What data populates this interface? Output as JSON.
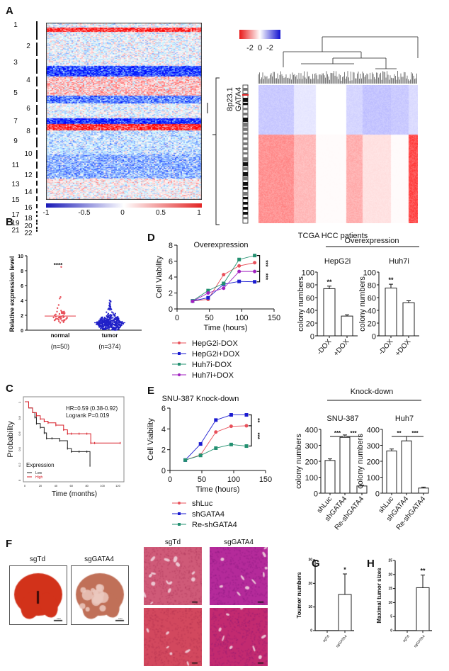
{
  "panel_labels": {
    "A": "A",
    "B": "B",
    "C": "C",
    "D": "D",
    "E": "E",
    "F": "F",
    "G": "G",
    "H": "H"
  },
  "group_titles": {
    "overexpression": "Overexpression",
    "knockdown": "Knock-down"
  },
  "colors": {
    "blue": "#1a1ab8",
    "red": "#e32626",
    "white": "#ffffff"
  },
  "panel_F": {
    "groups": [
      "sgTd",
      "sgGATA4"
    ],
    "scale_bar": "1cm"
  },
  "chart_data": [
    {
      "id": "A-genome-heatmap",
      "type": "heatmap",
      "rows_label": "chromosomes",
      "chromosomes": [
        "1",
        "2",
        "3",
        "4",
        "5",
        "6",
        "7",
        "8",
        "9",
        "10",
        "11",
        "12",
        "13",
        "14",
        "15",
        "16",
        "17",
        "18",
        "19",
        "20",
        "21",
        "22"
      ],
      "colorbar_ticks": [
        "-1",
        "-0.5",
        "0",
        "0.5",
        "1"
      ],
      "colorbar_range": [
        -1,
        1
      ]
    },
    {
      "id": "A-cluster-heatmap",
      "type": "heatmap",
      "colorbar_ticks": [
        "-2",
        "0",
        "-2"
      ],
      "locus": "8p23.1",
      "gene": "GATA4",
      "xlabel": "TCGA HCC patients"
    },
    {
      "id": "B",
      "type": "scatter",
      "ylabel": "Relative expression level",
      "ylim": [
        0,
        10
      ],
      "yticks": [
        0,
        2,
        4,
        6,
        8,
        10
      ],
      "categories": [
        "normal",
        "tumor"
      ],
      "n_labels": [
        "(n=50)",
        "(n=374)"
      ],
      "medians": [
        1.9,
        1.0
      ],
      "colors": [
        "#e8505a",
        "#2020c8"
      ],
      "significance": "****"
    },
    {
      "id": "C",
      "type": "line",
      "ylabel": "Probability",
      "xlabel": "Time (months)",
      "xticks": [
        0,
        20,
        40,
        60,
        80,
        100,
        120
      ],
      "yticks": [
        0,
        0.2,
        0.4,
        0.6,
        0.8,
        1.0
      ],
      "xlim": [
        0,
        125
      ],
      "ylim": [
        0,
        1
      ],
      "annotations": [
        "HR=0.59 (0.38-0.92)",
        "Logrank P=0.019"
      ],
      "legend_title": "Expression",
      "series": [
        {
          "name": "Low",
          "color": "#222222",
          "x": [
            0,
            5,
            10,
            13,
            15,
            20,
            25,
            28,
            35,
            45,
            55,
            60,
            70,
            80,
            84
          ],
          "y": [
            1,
            0.92,
            0.86,
            0.8,
            0.72,
            0.67,
            0.6,
            0.53,
            0.53,
            0.5,
            0.4,
            0.36,
            0.36,
            0.36,
            0.18
          ]
        },
        {
          "name": "High",
          "color": "#d8202a",
          "x": [
            0,
            5,
            10,
            15,
            20,
            25,
            30,
            40,
            50,
            55,
            60,
            70,
            80,
            85,
            90,
            123
          ],
          "y": [
            1,
            0.92,
            0.86,
            0.82,
            0.78,
            0.75,
            0.73,
            0.7,
            0.64,
            0.59,
            0.59,
            0.59,
            0.59,
            0.47,
            0.47,
            0.47
          ]
        }
      ]
    },
    {
      "id": "D-line",
      "type": "line",
      "title": "Overexpression",
      "ylabel": "Cell Viability",
      "xlabel": "Time (hours)",
      "xlim": [
        0,
        150
      ],
      "ylim": [
        0,
        8
      ],
      "xticks": [
        0,
        50,
        100,
        150
      ],
      "yticks": [
        0,
        2,
        4,
        6,
        8
      ],
      "x": [
        24,
        48,
        72,
        96,
        120
      ],
      "significance": [
        "***",
        "***"
      ],
      "series": [
        {
          "name": "HepG2i-DOX",
          "color": "#e8505a",
          "marker": "circle",
          "values": [
            1,
            1.2,
            4.3,
            5.4,
            5.8
          ]
        },
        {
          "name": "HepG2i+DOX",
          "color": "#1a1ad0",
          "marker": "square",
          "values": [
            1,
            1.4,
            3.1,
            3.45,
            3.4
          ]
        },
        {
          "name": "Huh7i-DOX",
          "color": "#229070",
          "marker": "square",
          "values": [
            1,
            2.3,
            3.2,
            6.2,
            6.7
          ]
        },
        {
          "name": "Huh7i+DOX",
          "color": "#a020c0",
          "marker": "circle",
          "values": [
            0.95,
            2,
            2.6,
            4.7,
            4.7
          ]
        }
      ]
    },
    {
      "id": "D-bar-HepG2i",
      "type": "bar",
      "title": "HepG2i",
      "ylabel": "colony numbers",
      "ylim": [
        0,
        100
      ],
      "yticks": [
        0,
        20,
        40,
        60,
        80,
        100
      ],
      "categories": [
        "-DOX",
        "+DOX"
      ],
      "values": [
        74,
        31
      ],
      "errors": [
        4,
        2
      ],
      "significance": [
        "**",
        ""
      ]
    },
    {
      "id": "D-bar-Huh7i",
      "type": "bar",
      "title": "Huh7i",
      "ylabel": "colony numbers",
      "ylim": [
        0,
        100
      ],
      "yticks": [
        0,
        20,
        40,
        60,
        80,
        100
      ],
      "categories": [
        "-DOX",
        "+DOX"
      ],
      "values": [
        75,
        52
      ],
      "errors": [
        6,
        3
      ],
      "significance": [
        "**",
        ""
      ]
    },
    {
      "id": "E-line",
      "type": "line",
      "title": "SNU-387 Knock-down",
      "ylabel": "Cell Viability",
      "xlabel": "Time (hours)",
      "xlim": [
        0,
        150
      ],
      "ylim": [
        0,
        6
      ],
      "xticks": [
        0,
        50,
        100,
        150
      ],
      "yticks": [
        0,
        2,
        4,
        6
      ],
      "x": [
        24,
        48,
        72,
        96,
        120
      ],
      "significance": [
        "**",
        "***"
      ],
      "series": [
        {
          "name": "shLuc",
          "color": "#e8505a",
          "marker": "circle",
          "values": [
            1,
            1.5,
            3.7,
            4.25,
            4.3
          ]
        },
        {
          "name": "shGATA4",
          "color": "#1a1ad0",
          "marker": "square",
          "values": [
            1,
            2.55,
            4.85,
            5.35,
            5.35
          ]
        },
        {
          "name": "Re-shGATA4",
          "color": "#229070",
          "marker": "square",
          "values": [
            1,
            1.45,
            2.15,
            2.5,
            2.35
          ]
        }
      ]
    },
    {
      "id": "E-bar-SNU-387",
      "type": "bar",
      "title": "SNU-387",
      "ylabel": "colony numbers",
      "ylim": [
        0,
        400
      ],
      "yticks": [
        0,
        100,
        200,
        300,
        400
      ],
      "categories": [
        "shLuc",
        "shGATA4",
        "Re-shGATA4"
      ],
      "values": [
        205,
        350,
        45
      ],
      "errors": [
        10,
        15,
        4
      ],
      "significance": [
        "***",
        "***"
      ]
    },
    {
      "id": "E-bar-Huh7",
      "type": "bar",
      "title": "Huh7",
      "ylabel": "colony numbers",
      "ylim": [
        0,
        400
      ],
      "yticks": [
        0,
        100,
        200,
        300,
        400
      ],
      "categories": [
        "shLuc",
        "shGATA4",
        "Re-shGATA4"
      ],
      "values": [
        265,
        328,
        32
      ],
      "errors": [
        12,
        28,
        6
      ],
      "significance": [
        "**",
        "***"
      ]
    },
    {
      "id": "G",
      "type": "bar",
      "ylabel": "Toumor numbers",
      "ylim": [
        0,
        30
      ],
      "yticks": [
        0,
        10,
        20,
        30
      ],
      "categories": [
        "sgTd",
        "sgGATA4"
      ],
      "values": [
        0,
        15.3
      ],
      "errors": [
        0,
        8.7
      ],
      "significance": [
        "",
        "*"
      ]
    },
    {
      "id": "H",
      "type": "bar",
      "ylabel": "Maximal tumor sizes",
      "ylim": [
        0,
        25
      ],
      "yticks": [
        0,
        5,
        10,
        15,
        20,
        25
      ],
      "categories": [
        "sgTd",
        "sgGATA4"
      ],
      "values": [
        0,
        15.3
      ],
      "errors": [
        0,
        4.5
      ],
      "significance": [
        "",
        "**"
      ]
    }
  ]
}
